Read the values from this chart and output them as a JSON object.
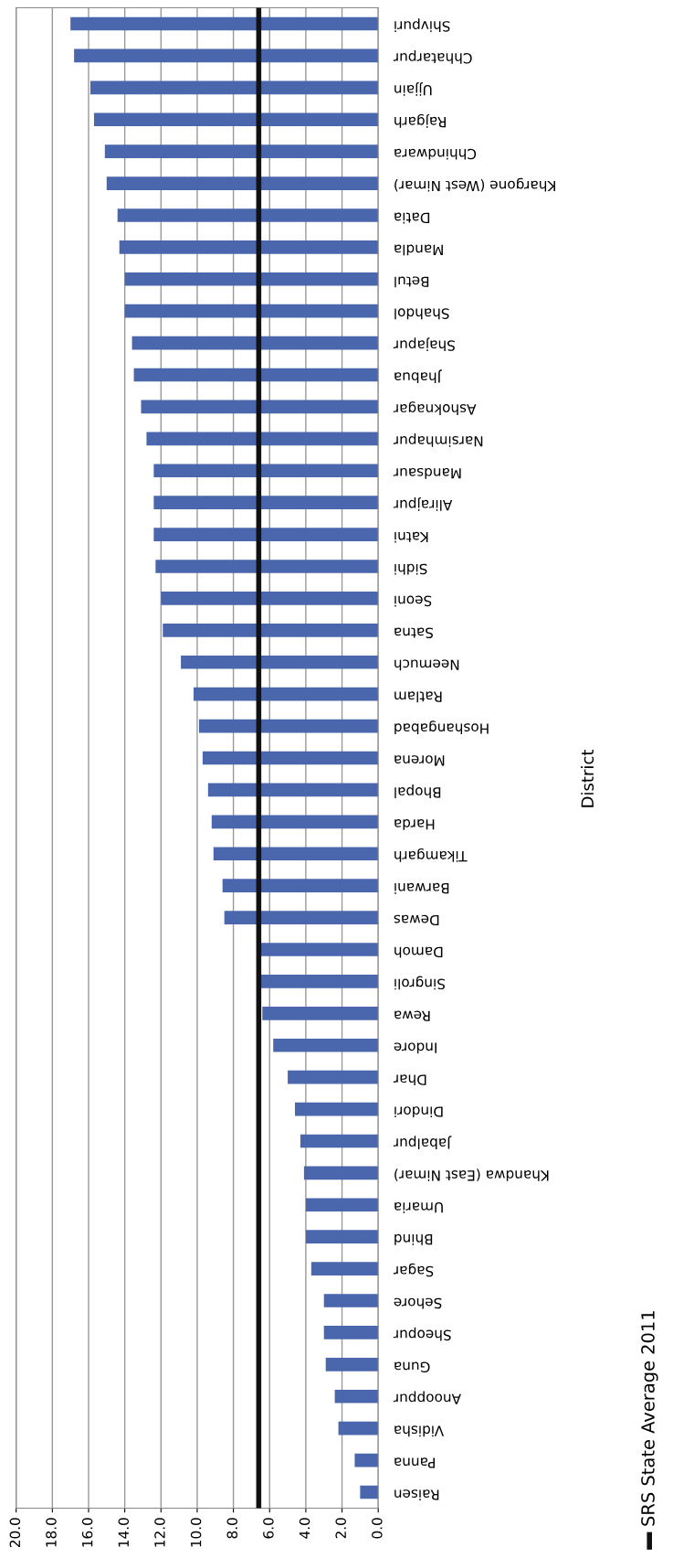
{
  "chart_data": {
    "type": "bar",
    "orientation": "horizontal",
    "ylabel": "District",
    "categories": [
      "Shivpuri",
      "Chhatarpur",
      "Ujjain",
      "Rajgarh",
      "Chhindwara",
      "Khargone (West Nimar)",
      "Datia",
      "Mandla",
      "Betul",
      "Shahdol",
      "Shajapur",
      "Jhabua",
      "Ashoknagar",
      "Narsimhapur",
      "Mandsaur",
      "Alirajpur",
      "Katni",
      "Sidhi",
      "Seoni",
      "Satna",
      "Neemuch",
      "Ratlam",
      "Hoshangabad",
      "Morena",
      "Bhopal",
      "Harda",
      "Tikamgarh",
      "Barwani",
      "Dewas",
      "Damoh",
      "Singroli",
      "Rewa",
      "Indore",
      "Dhar",
      "Dindori",
      "Jabalpur",
      "Khandwa (East Nimar)",
      "Umaria",
      "Bhind",
      "Sagar",
      "Sehore",
      "Sheopur",
      "Guna",
      "Anooppur",
      "Vidisha",
      "Panna",
      "Raisen"
    ],
    "values": [
      17.0,
      16.8,
      15.9,
      15.7,
      15.1,
      15.0,
      14.4,
      14.3,
      14.0,
      14.0,
      13.6,
      13.5,
      13.1,
      12.8,
      12.4,
      12.4,
      12.4,
      12.3,
      12.0,
      11.9,
      10.9,
      10.2,
      9.9,
      9.7,
      9.4,
      9.2,
      9.1,
      8.6,
      8.5,
      6.6,
      6.6,
      6.4,
      5.8,
      5.0,
      4.6,
      4.3,
      4.1,
      4.0,
      4.0,
      3.7,
      3.0,
      3.0,
      2.9,
      2.4,
      2.2,
      1.3,
      1.0
    ],
    "color": "#4a66ac",
    "xlim": [
      20,
      0
    ],
    "xticks": [
      {
        "value": 20,
        "label": "20.0"
      },
      {
        "value": 18,
        "label": "18.0"
      },
      {
        "value": 16,
        "label": "16.0"
      },
      {
        "value": 14,
        "label": "14.0"
      },
      {
        "value": 12,
        "label": "12.0"
      },
      {
        "value": 10,
        "label": "10.0"
      },
      {
        "value": 8,
        "label": "8.0"
      },
      {
        "value": 6,
        "label": "6.0"
      },
      {
        "value": 4,
        "label": "4.0"
      },
      {
        "value": 2,
        "label": "2.0"
      },
      {
        "value": 0,
        "label": "0.0"
      }
    ],
    "ref_lines": [
      {
        "axis": "x",
        "value": 6.6,
        "label": "SRS State Average 2011",
        "color": "#111111"
      }
    ],
    "grid": "x",
    "legend": "bottom right"
  }
}
